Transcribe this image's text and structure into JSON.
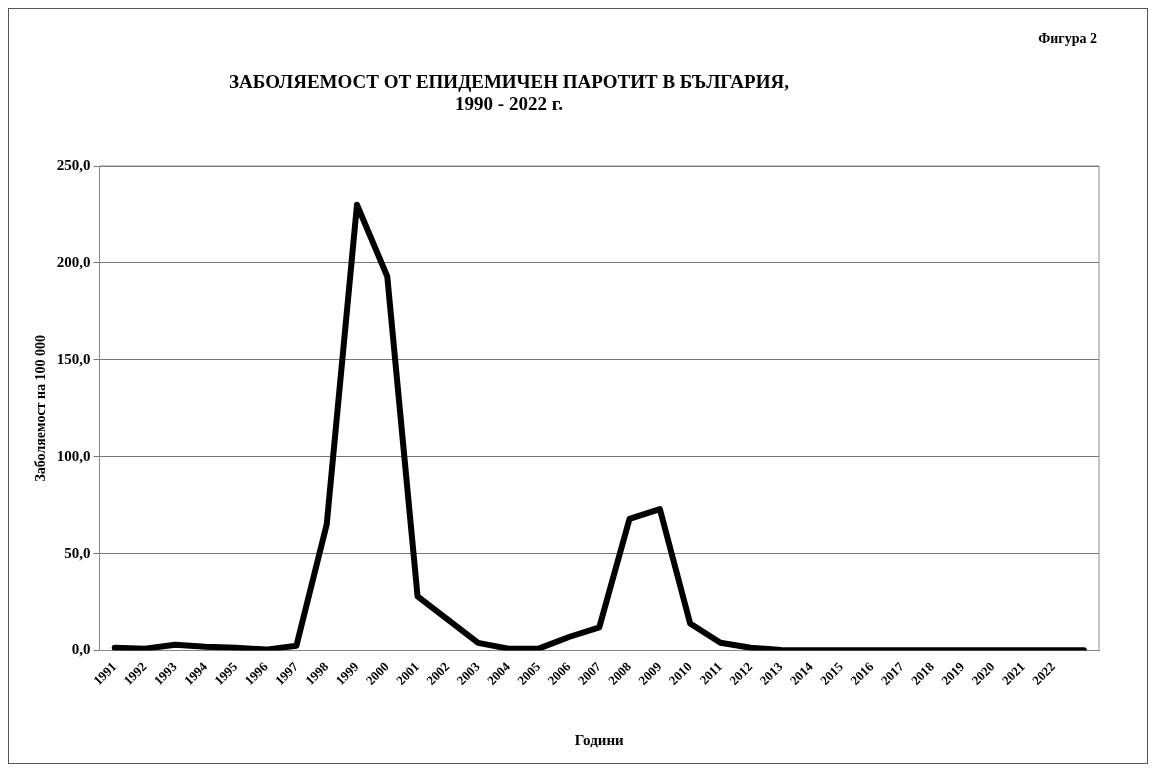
{
  "chart_data": {
    "type": "line",
    "title": "ЗАБОЛЯЕМОСТ ОТ ЕПИДЕМИЧЕН ПАРОТИТ В БЪЛГАРИЯ,\n1990 - 2022 г.",
    "xlabel": "Години",
    "ylabel": "Заболяемост на 100 000",
    "annotations": [
      "Фигура 2"
    ],
    "categories": [
      "1991",
      "1992",
      "1993",
      "1994",
      "1995",
      "1996",
      "1997",
      "1998",
      "1999",
      "2000",
      "2001",
      "2002",
      "2003",
      "2004",
      "2005",
      "2006",
      "2007",
      "2008",
      "2009",
      "2010",
      "2011",
      "2012",
      "2013",
      "2014",
      "2015",
      "2016",
      "2017",
      "2018",
      "2019",
      "2020",
      "2021",
      "2022",
      null
    ],
    "series": [
      {
        "color": "#000000",
        "values": [
          1.5,
          1.0,
          3.0,
          2.0,
          1.5,
          0.5,
          2.5,
          65,
          230,
          193,
          28,
          16,
          4,
          1,
          1,
          7,
          12,
          68,
          73,
          14,
          4,
          1.5,
          0.3,
          0.2,
          0.2,
          0.2,
          0.2,
          0.2,
          0.2,
          0.2,
          0.2,
          0.2,
          0.2
        ]
      }
    ],
    "ylim": [
      0,
      250
    ],
    "yticks": [
      {
        "value": 0,
        "label": "0,0"
      },
      {
        "value": 50,
        "label": "50,0"
      },
      {
        "value": 100,
        "label": "100,0"
      },
      {
        "value": 150,
        "label": "150,0"
      },
      {
        "value": 200,
        "label": "200,0"
      },
      {
        "value": 250,
        "label": "250,0"
      }
    ],
    "grid": "y",
    "legend": false,
    "marker": "none",
    "line_style": "solid"
  }
}
